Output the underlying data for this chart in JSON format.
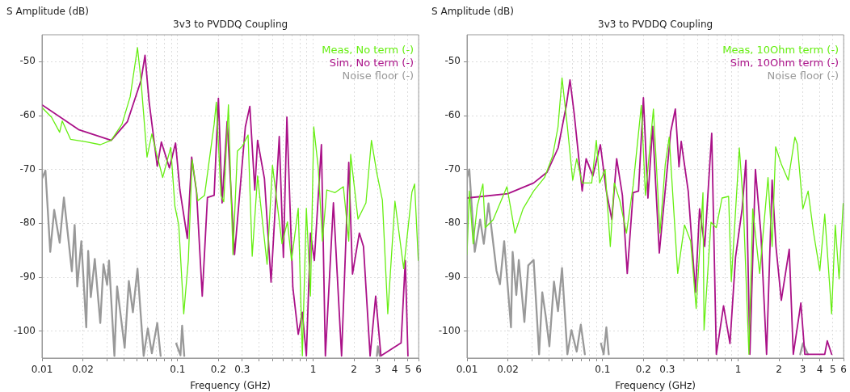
{
  "chart_data": [
    {
      "type": "line",
      "title": "3v3 to PVDDQ Coupling",
      "xlabel": "Frequency (GHz)",
      "ylabel": "S Amplitude (dB)",
      "log": "x",
      "xlim": [
        0.01,
        6
      ],
      "ylim": [
        -105,
        -45
      ],
      "xticks": [
        0.01,
        0.02,
        {
          "value": 0.03,
          "label": null
        },
        {
          "value": 0.04,
          "label": null
        },
        {
          "value": 0.05,
          "label": null
        },
        {
          "value": 0.06,
          "label": null
        },
        {
          "value": 0.07,
          "label": null
        },
        {
          "value": 0.08,
          "label": null
        },
        {
          "value": 0.09,
          "label": null
        },
        0.1,
        0.2,
        0.3,
        {
          "value": 0.4,
          "label": null
        },
        {
          "value": 0.5,
          "label": null
        },
        {
          "value": 0.6,
          "label": null
        },
        {
          "value": 0.7,
          "label": null
        },
        {
          "value": 0.8,
          "label": null
        },
        {
          "value": 0.9,
          "label": null
        },
        1,
        2,
        3,
        4,
        5,
        6
      ],
      "yticks": [
        -100,
        -90,
        -80,
        -70,
        -60,
        -50
      ],
      "grid": true,
      "legend": "top right",
      "series": [
        {
          "name": "Meas, No term (-)",
          "color": "#66ee11",
          "x": [
            0.01,
            0.01175,
            0.01349,
            0.0141,
            0.01622,
            0.02138,
            0.02692,
            0.0324,
            0.0389,
            0.0447,
            0.0506,
            0.0537,
            0.0595,
            0.0646,
            0.0692,
            0.0776,
            0.089,
            0.0955,
            0.102,
            0.111,
            0.12,
            0.128,
            0.141,
            0.158,
            0.186,
            0.193,
            0.209,
            0.219,
            0.237,
            0.256,
            0.276,
            0.302,
            0.331,
            0.355,
            0.389,
            0.457,
            0.501,
            0.589,
            0.646,
            0.692,
            0.776,
            0.832,
            0.891,
            0.955,
            1.01,
            1.09,
            1.17,
            1.26,
            1.45,
            1.67,
            1.83,
            1.89,
            2.14,
            2.45,
            2.69,
            2.95,
            3.24,
            3.55,
            4.01,
            4.65,
            5.35,
            5.6,
            5.96
          ],
          "values": [
            -58.5,
            -60.3,
            -63.1,
            -61,
            -64.4,
            -64.9,
            -65.4,
            -64.6,
            -61.6,
            -56.5,
            -47.4,
            -53.5,
            -67.7,
            -63.4,
            -66.6,
            -71.5,
            -65.9,
            -76.8,
            -80.3,
            -96.8,
            -86.8,
            -68.2,
            -75.8,
            -74.8,
            -61.6,
            -57.5,
            -74.8,
            -76,
            -58,
            -85.8,
            -66.6,
            -65.6,
            -63.6,
            -86.1,
            -71.2,
            -87.6,
            -69.2,
            -83.8,
            -79.7,
            -86.9,
            -77.2,
            -104.6,
            -77.2,
            -93.5,
            -62.1,
            -69.7,
            -83.3,
            -73.8,
            -74.3,
            -73.2,
            -83.3,
            -67.2,
            -79.2,
            -76.2,
            -64.6,
            -70.7,
            -75.7,
            -96.8,
            -75.9,
            -88.4,
            -74.2,
            -72.7,
            -86.9
          ]
        },
        {
          "name": "Sim, No term (-)",
          "color": "#aa1188",
          "x": [
            0.01,
            0.0186,
            0.0324,
            0.0427,
            0.0537,
            0.0575,
            0.0617,
            0.0708,
            0.0759,
            0.087,
            0.0966,
            0.104,
            0.118,
            0.127,
            0.138,
            0.152,
            0.166,
            0.186,
            0.2,
            0.213,
            0.232,
            0.263,
            0.316,
            0.341,
            0.371,
            0.389,
            0.437,
            0.489,
            0.562,
            0.603,
            0.64,
            0.708,
            0.776,
            0.832,
            0.891,
            0.955,
            1.02,
            1.15,
            1.23,
            1.41,
            1.62,
            1.83,
            1.95,
            2.19,
            2.35,
            2.63,
            2.89,
            3.16,
            4.45,
            4.78,
            5.0
          ],
          "values": [
            -58,
            -62.6,
            -64.6,
            -61.1,
            -53.5,
            -48.8,
            -57.5,
            -69.4,
            -64.9,
            -69.7,
            -65.1,
            -73.8,
            -82.8,
            -67.7,
            -74.2,
            -93.5,
            -75.2,
            -74.8,
            -56.8,
            -76.2,
            -61.1,
            -85.8,
            -62.1,
            -58.3,
            -73.8,
            -64.6,
            -71.7,
            -90.9,
            -63.9,
            -86.3,
            -60.3,
            -91.9,
            -100.6,
            -96.5,
            -104.6,
            -81.8,
            -86.9,
            -65.4,
            -104.6,
            -76.2,
            -104.6,
            -68.7,
            -89.4,
            -81.8,
            -84.3,
            -104.6,
            -93.5,
            -104.6,
            -102.2,
            -86.9,
            -104.6
          ]
        },
        {
          "name": "Noise floor (-)",
          "color": "#999999",
          "x": [
            0.01,
            0.0106,
            0.0115,
            0.0123,
            0.0135,
            0.0145,
            0.0166,
            0.0174,
            0.0182,
            0.0195,
            0.0212,
            0.0219,
            0.0229,
            0.0245,
            0.0269,
            0.0284,
            0.0302,
            0.0312,
            0.0342,
            0.0358,
            0.038,
            0.0407,
            0.0437,
            0.0468,
            0.0506,
            0.0562,
            0.0603,
            0.0646,
            0.0708,
            0.075,
            0.085,
            0.0977,
            0.105,
            0.108,
            0.112,
            0.2,
            2.95,
            3.0,
            3.1
          ],
          "values": [
            -71.7,
            -70.2,
            -85.3,
            -77.5,
            -83.6,
            -75.2,
            -88.9,
            -80.3,
            -91.7,
            -83.3,
            -99.3,
            -85.1,
            -93.7,
            -86.6,
            -98.5,
            -87.6,
            -91.4,
            -86.9,
            -104.6,
            -91.7,
            -97,
            -103.1,
            -90.7,
            -96.5,
            -88.4,
            -104.6,
            -99.5,
            -104.1,
            -98.5,
            -104.6,
            null,
            -102.3,
            -104.5,
            -99,
            -104.6,
            null,
            -104.6,
            -102.8,
            -104.6
          ]
        }
      ]
    },
    {
      "type": "line",
      "title": "3v3 to PVDDQ Coupling",
      "xlabel": "Frequency (GHz)",
      "ylabel": "S Amplitude (dB)",
      "log": "x",
      "xlim": [
        0.01,
        6
      ],
      "ylim": [
        -105,
        -45
      ],
      "xticks": [
        0.01,
        0.02,
        {
          "value": 0.03,
          "label": null
        },
        {
          "value": 0.04,
          "label": null
        },
        {
          "value": 0.05,
          "label": null
        },
        {
          "value": 0.06,
          "label": null
        },
        {
          "value": 0.07,
          "label": null
        },
        {
          "value": 0.08,
          "label": null
        },
        {
          "value": 0.09,
          "label": null
        },
        0.1,
        0.2,
        0.3,
        {
          "value": 0.4,
          "label": null
        },
        {
          "value": 0.5,
          "label": null
        },
        {
          "value": 0.6,
          "label": null
        },
        {
          "value": 0.7,
          "label": null
        },
        {
          "value": 0.8,
          "label": null
        },
        {
          "value": 0.9,
          "label": null
        },
        1,
        2,
        3,
        4,
        5,
        6
      ],
      "yticks": [
        -100,
        -90,
        -80,
        -70,
        -60,
        -50
      ],
      "grid": true,
      "legend": "top right",
      "series": [
        {
          "name": "Meas, 10Ohm term (-)",
          "color": "#66ee11",
          "x": [
            0.01,
            0.0104,
            0.0111,
            0.0119,
            0.0131,
            0.0136,
            0.0156,
            0.0175,
            0.0197,
            0.0226,
            0.0259,
            0.031,
            0.0373,
            0.0428,
            0.0469,
            0.0502,
            0.055,
            0.0602,
            0.0644,
            0.0707,
            0.0831,
            0.0899,
            0.0952,
            0.1043,
            0.114,
            0.122,
            0.134,
            0.15,
            0.168,
            0.193,
            0.207,
            0.237,
            0.265,
            0.29,
            0.31,
            0.358,
            0.402,
            0.446,
            0.49,
            0.55,
            0.56,
            0.63,
            0.69,
            0.76,
            0.85,
            0.89,
            1.02,
            1.09,
            1.2,
            1.28,
            1.44,
            1.66,
            1.78,
            1.89,
            2.08,
            2.34,
            2.62,
            2.73,
            3.0,
            3.28,
            3.6,
            4.0,
            4.35,
            4.89,
            5.2,
            5.55,
            5.95
          ],
          "values": [
            -85.8,
            -74,
            -83.8,
            -76.8,
            -72.7,
            -80.8,
            -79.3,
            -76.3,
            -73.2,
            -81.8,
            -77.3,
            -74,
            -71.5,
            -67.5,
            -62.1,
            -53,
            -62.1,
            -72,
            -68,
            -72.5,
            -72.5,
            -64.6,
            -72.5,
            -70,
            -84.3,
            -72.5,
            -75.8,
            -81.8,
            -73,
            -58.1,
            -74.8,
            -58.8,
            -81.8,
            -69,
            -64,
            -89.3,
            -80.3,
            -83.3,
            -95.8,
            -74.3,
            -99.8,
            -79.8,
            -80.8,
            -75.3,
            -75,
            -90.8,
            -66,
            -76.3,
            -104.3,
            -77.3,
            -89.3,
            -71.5,
            -84.3,
            -65.8,
            -69,
            -72,
            -64,
            -65.3,
            -77.3,
            -74,
            -81.8,
            -88.8,
            -78.3,
            -96.8,
            -80.3,
            -90.3,
            -76.3
          ]
        },
        {
          "name": "Sim, 10Ohm term (-)",
          "color": "#aa1188",
          "x": [
            0.01,
            0.02,
            0.031,
            0.039,
            0.047,
            0.054,
            0.0575,
            0.0617,
            0.0707,
            0.0756,
            0.0847,
            0.0963,
            0.1065,
            0.117,
            0.127,
            0.14,
            0.152,
            0.168,
            0.184,
            0.2,
            0.216,
            0.234,
            0.262,
            0.318,
            0.344,
            0.366,
            0.38,
            0.428,
            0.484,
            0.519,
            0.566,
            0.638,
            0.69,
            0.78,
            0.87,
            0.956,
            1.07,
            1.14,
            1.22,
            1.34,
            1.47,
            1.62,
            1.78,
            1.9,
            2.08,
            2.38,
            2.55,
            2.9,
            3.1,
            4.35,
            4.54,
            4.89
          ],
          "values": [
            -75.3,
            -74.5,
            -72.5,
            -70.5,
            -66,
            -58.1,
            -53.4,
            -59.6,
            -74,
            -68,
            -71.2,
            -65.4,
            -74,
            -79.3,
            -68,
            -74.8,
            -89.3,
            -74.3,
            -74,
            -56.7,
            -75.3,
            -62,
            -85.5,
            -63,
            -58.8,
            -69.5,
            -64.8,
            -74,
            -92.8,
            -77.3,
            -84.3,
            -63.3,
            -104.3,
            -95.3,
            -102.3,
            -86.3,
            -77.3,
            -68.3,
            -104.3,
            -70,
            -81.8,
            -104.3,
            -72,
            -84.3,
            -94.3,
            -84.8,
            -104.3,
            -94.8,
            -104.3,
            -104.3,
            -101.8,
            -104.3
          ]
        },
        {
          "name": "Noise floor (-)",
          "color": "#999999",
          "x": [
            0.01,
            0.0104,
            0.0114,
            0.0125,
            0.0133,
            0.0144,
            0.0165,
            0.0175,
            0.0188,
            0.0211,
            0.0217,
            0.0231,
            0.0241,
            0.0265,
            0.0283,
            0.031,
            0.034,
            0.0359,
            0.0381,
            0.0405,
            0.0438,
            0.0469,
            0.0502,
            0.055,
            0.0589,
            0.0644,
            0.0691,
            0.074,
            0.085,
            0.0973,
            0.1018,
            0.1066,
            0.111,
            0.2,
            2.87,
            3.0,
            3.27
          ],
          "values": [
            -71.5,
            -70,
            -85.3,
            -79.3,
            -83.8,
            -76.3,
            -88.8,
            -91.3,
            -83.3,
            -99.3,
            -85.3,
            -93.3,
            -86.8,
            -98.3,
            -87.8,
            -86.8,
            -104.3,
            -92.8,
            -97.3,
            -102.8,
            -90.8,
            -96.3,
            -88.3,
            -104.3,
            -99.8,
            -103.8,
            -98.8,
            -104.3,
            null,
            -102.3,
            -104.3,
            -99.3,
            -104.3,
            null,
            -104.3,
            -102.3,
            -104.3
          ]
        }
      ]
    }
  ]
}
